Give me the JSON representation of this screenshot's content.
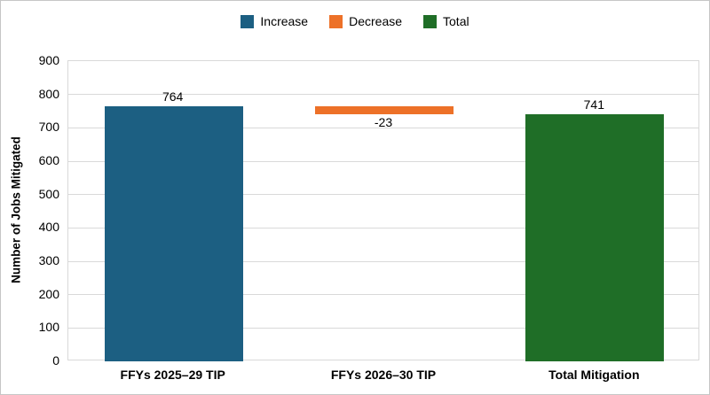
{
  "legend": {
    "items": [
      {
        "label": "Increase",
        "color": "#1c5f82"
      },
      {
        "label": "Decrease",
        "color": "#ed7128"
      },
      {
        "label": "Total",
        "color": "#1f6e27"
      }
    ]
  },
  "chart_data": {
    "type": "bar",
    "subtype": "waterfall",
    "title": "",
    "xlabel": "",
    "ylabel": "Number of Jobs Mitigated",
    "ylim": [
      0,
      900
    ],
    "yticks": [
      0,
      100,
      200,
      300,
      400,
      500,
      600,
      700,
      800,
      900
    ],
    "grid": "horizontal",
    "legend_position": "top-center",
    "categories": [
      "FFYs 2025–29 TIP",
      "FFYs 2026–30 TIP",
      "Total Mitigation"
    ],
    "bars": [
      {
        "category": "FFYs 2025–29 TIP",
        "series": "Increase",
        "value": 764,
        "start": 0,
        "end": 764,
        "label": "764",
        "label_position": "above",
        "color": "#1c5f82"
      },
      {
        "category": "FFYs 2026–30 TIP",
        "series": "Decrease",
        "value": -23,
        "start": 764,
        "end": 741,
        "label": "-23",
        "label_position": "below",
        "color": "#ed7128"
      },
      {
        "category": "Total Mitigation",
        "series": "Total",
        "value": 741,
        "start": 0,
        "end": 741,
        "label": "741",
        "label_position": "above",
        "color": "#1f6e27"
      }
    ],
    "colors": {
      "gridline": "#d9d9d9",
      "plot_border": "#d9d9d9",
      "outer_border": "#c6c6c6",
      "text": "#000000",
      "background": "#ffffff"
    }
  }
}
